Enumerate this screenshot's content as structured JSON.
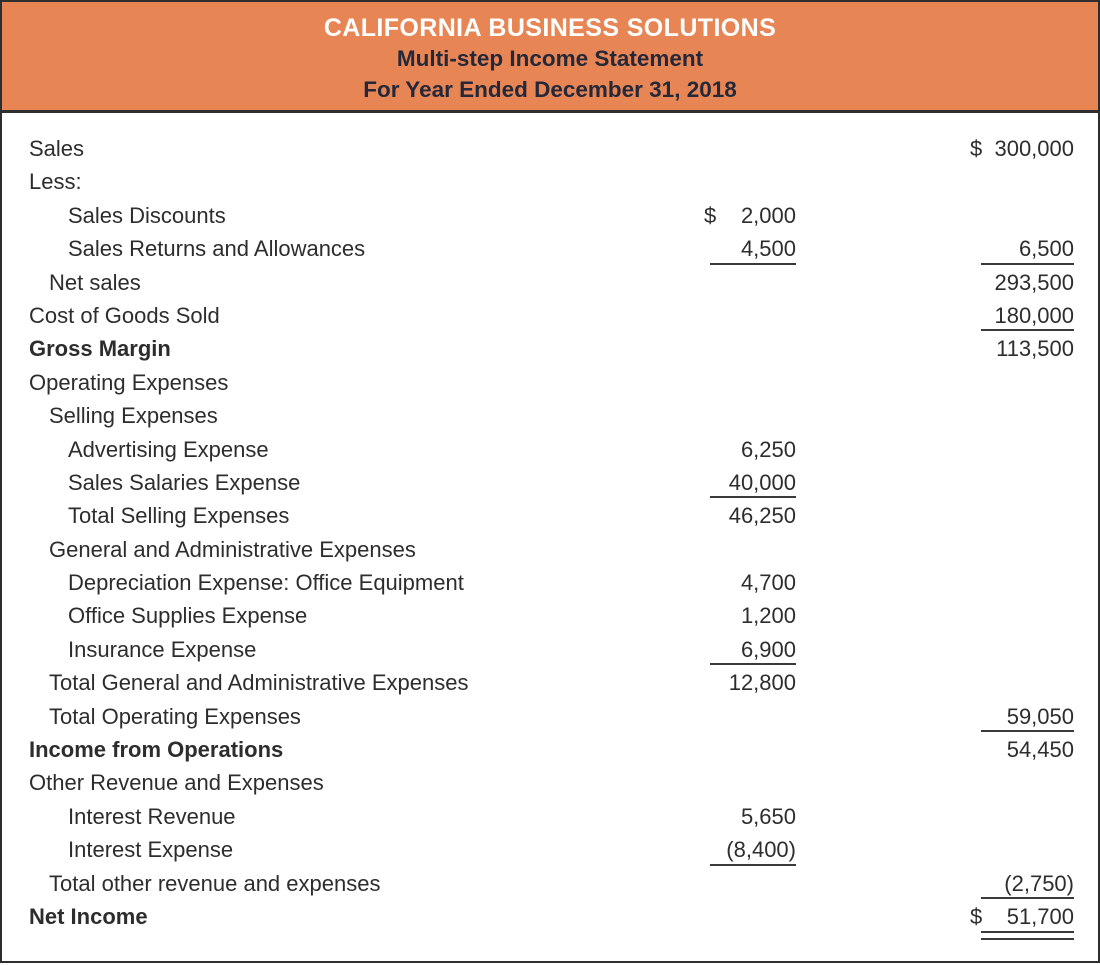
{
  "header": {
    "company": "CALIFORNIA BUSINESS SOLUTIONS",
    "subtitle": "Multi-step Income Statement",
    "period": "For Year Ended December 31, 2018"
  },
  "colors": {
    "header_bg": "#E88555",
    "header_title": "#FFFFFF",
    "header_subtitle": "#242838",
    "body_text": "#2D2D2D",
    "rule": "#3A3A3A",
    "border": "#2E2E2E"
  },
  "statement": {
    "rows": [
      {
        "label": "Sales",
        "indent": 0,
        "bold": false,
        "mid": null,
        "right": {
          "sym": "$",
          "val": "300,000",
          "u": ""
        }
      },
      {
        "label": "Less:",
        "indent": 0,
        "bold": false,
        "mid": null,
        "right": null
      },
      {
        "label": "Sales Discounts",
        "indent": 2,
        "bold": false,
        "mid": {
          "sym": "$",
          "val": "2,000",
          "u": ""
        },
        "right": null
      },
      {
        "label": "Sales Returns and Allowances",
        "indent": 2,
        "bold": false,
        "mid": {
          "sym": "",
          "val": "4,500",
          "u": "single"
        },
        "right": {
          "sym": "",
          "val": "6,500",
          "u": "single"
        }
      },
      {
        "label": "Net sales",
        "indent": 1,
        "bold": false,
        "mid": null,
        "right": {
          "sym": "",
          "val": "293,500",
          "u": ""
        }
      },
      {
        "label": "Cost of Goods Sold",
        "indent": 0,
        "bold": false,
        "mid": null,
        "right": {
          "sym": "",
          "val": "180,000",
          "u": "single"
        }
      },
      {
        "label": "Gross Margin",
        "indent": 0,
        "bold": true,
        "mid": null,
        "right": {
          "sym": "",
          "val": "113,500",
          "u": ""
        }
      },
      {
        "label": "Operating Expenses",
        "indent": 0,
        "bold": false,
        "mid": null,
        "right": null
      },
      {
        "label": "Selling Expenses",
        "indent": 1,
        "bold": false,
        "mid": null,
        "right": null
      },
      {
        "label": "Advertising Expense",
        "indent": 2,
        "bold": false,
        "mid": {
          "sym": "",
          "val": "6,250",
          "u": ""
        },
        "right": null
      },
      {
        "label": "Sales Salaries Expense",
        "indent": 2,
        "bold": false,
        "mid": {
          "sym": "",
          "val": "40,000",
          "u": "single"
        },
        "right": null
      },
      {
        "label": "Total Selling Expenses",
        "indent": 2,
        "bold": false,
        "mid": {
          "sym": "",
          "val": "46,250",
          "u": ""
        },
        "right": null
      },
      {
        "label": "General and Administrative Expenses",
        "indent": 1,
        "bold": false,
        "mid": null,
        "right": null
      },
      {
        "label": "Depreciation Expense: Office Equipment",
        "indent": 2,
        "bold": false,
        "mid": {
          "sym": "",
          "val": "4,700",
          "u": ""
        },
        "right": null
      },
      {
        "label": "Office Supplies Expense",
        "indent": 2,
        "bold": false,
        "mid": {
          "sym": "",
          "val": "1,200",
          "u": ""
        },
        "right": null
      },
      {
        "label": "Insurance Expense",
        "indent": 2,
        "bold": false,
        "mid": {
          "sym": "",
          "val": "6,900",
          "u": "single"
        },
        "right": null
      },
      {
        "label": "Total General and Administrative Expenses",
        "indent": 1,
        "bold": false,
        "mid": {
          "sym": "",
          "val": "12,800",
          "u": ""
        },
        "right": null
      },
      {
        "label": "Total Operating Expenses",
        "indent": 1,
        "bold": false,
        "mid": null,
        "right": {
          "sym": "",
          "val": "59,050",
          "u": "single"
        }
      },
      {
        "label": "Income from Operations",
        "indent": 0,
        "bold": true,
        "mid": null,
        "right": {
          "sym": "",
          "val": "54,450",
          "u": ""
        }
      },
      {
        "label": "Other Revenue and Expenses",
        "indent": 0,
        "bold": false,
        "mid": null,
        "right": null
      },
      {
        "label": "Interest Revenue",
        "indent": 2,
        "bold": false,
        "mid": {
          "sym": "",
          "val": "5,650",
          "u": ""
        },
        "right": null
      },
      {
        "label": "Interest Expense",
        "indent": 2,
        "bold": false,
        "mid": {
          "sym": "",
          "val": "(8,400)",
          "u": "single"
        },
        "right": null
      },
      {
        "label": "Total other revenue and expenses",
        "indent": 1,
        "bold": false,
        "mid": null,
        "right": {
          "sym": "",
          "val": "(2,750)",
          "u": "single"
        }
      },
      {
        "label": "Net Income",
        "indent": 0,
        "bold": true,
        "mid": null,
        "right": {
          "sym": "$",
          "val": "51,700",
          "u": "double"
        }
      }
    ]
  }
}
